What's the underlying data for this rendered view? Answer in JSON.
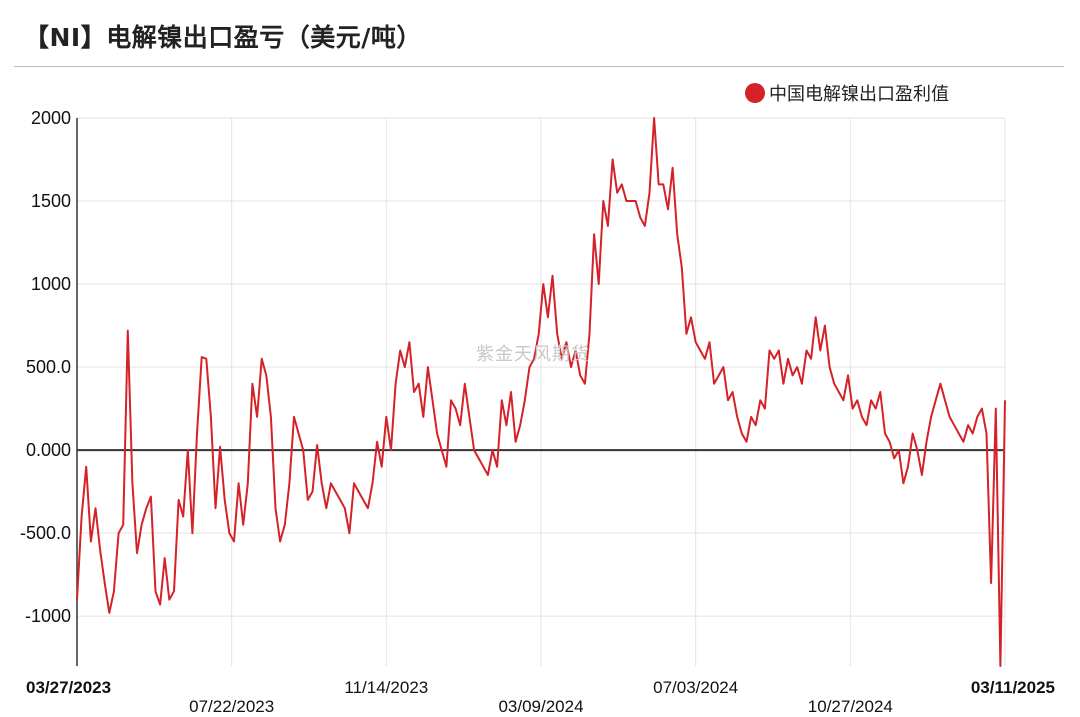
{
  "title": "【NI】电解镍出口盈亏（美元/吨）",
  "watermark": "紫金天风期货",
  "colors": {
    "series": "#d42228",
    "zero_line": "#333333",
    "grid": "#e3e3e3"
  },
  "chart_data": {
    "type": "line",
    "title": "【NI】电解镍出口盈亏（美元/吨）",
    "xlabel": "",
    "ylabel": "",
    "ylim": [
      -1300,
      2000
    ],
    "yticks": [
      2000,
      1500,
      1000,
      500,
      0,
      -500,
      -1000
    ],
    "ytick_labels": [
      "2000",
      "1500",
      "1000",
      "500.0",
      "0.000",
      "-500.0",
      "-1000"
    ],
    "xtick_labels": [
      "03/27/2023",
      "07/22/2023",
      "11/14/2023",
      "03/09/2024",
      "07/03/2024",
      "10/27/2024",
      "03/11/2025"
    ],
    "xtick_bold": [
      true,
      false,
      false,
      false,
      false,
      false,
      true
    ],
    "legend_position": "top-right",
    "grid": true,
    "series": [
      {
        "name": "中国电解镍出口盈利值",
        "x_start": "03/27/2023",
        "x_end": "03/11/2025",
        "values": [
          -900,
          -400,
          -100,
          -550,
          -350,
          -600,
          -800,
          -980,
          -850,
          -500,
          -450,
          720,
          -200,
          -620,
          -450,
          -350,
          -280,
          -850,
          -930,
          -650,
          -900,
          -850,
          -300,
          -400,
          0,
          -500,
          100,
          560,
          550,
          200,
          -350,
          20,
          -300,
          -500,
          -550,
          -200,
          -450,
          -200,
          400,
          200,
          550,
          450,
          200,
          -350,
          -550,
          -450,
          -200,
          200,
          100,
          0,
          -300,
          -250,
          30,
          -200,
          -350,
          -200,
          -250,
          -300,
          -350,
          -500,
          -200,
          -250,
          -300,
          -350,
          -200,
          50,
          -100,
          200,
          0,
          400,
          600,
          500,
          650,
          350,
          400,
          200,
          500,
          300,
          100,
          0,
          -100,
          300,
          250,
          150,
          400,
          200,
          0,
          -50,
          -100,
          -150,
          0,
          -100,
          300,
          150,
          350,
          50,
          150,
          300,
          500,
          550,
          700,
          1000,
          800,
          1050,
          700,
          550,
          650,
          500,
          600,
          450,
          400,
          700,
          1300,
          1000,
          1500,
          1350,
          1750,
          1550,
          1600,
          1500,
          1500,
          1500,
          1400,
          1350,
          1550,
          2000,
          1600,
          1600,
          1450,
          1700,
          1300,
          1100,
          700,
          800,
          650,
          600,
          550,
          650,
          400,
          450,
          500,
          300,
          350,
          200,
          100,
          50,
          200,
          150,
          300,
          250,
          600,
          550,
          600,
          400,
          550,
          450,
          500,
          400,
          600,
          550,
          800,
          600,
          750,
          500,
          400,
          350,
          300,
          450,
          250,
          300,
          200,
          150,
          300,
          250,
          350,
          100,
          50,
          -50,
          0,
          -200,
          -100,
          100,
          0,
          -150,
          50,
          200,
          300,
          400,
          300,
          200,
          150,
          100,
          50,
          150,
          100,
          200,
          250,
          100,
          -800,
          250,
          -1300,
          300
        ]
      }
    ]
  }
}
